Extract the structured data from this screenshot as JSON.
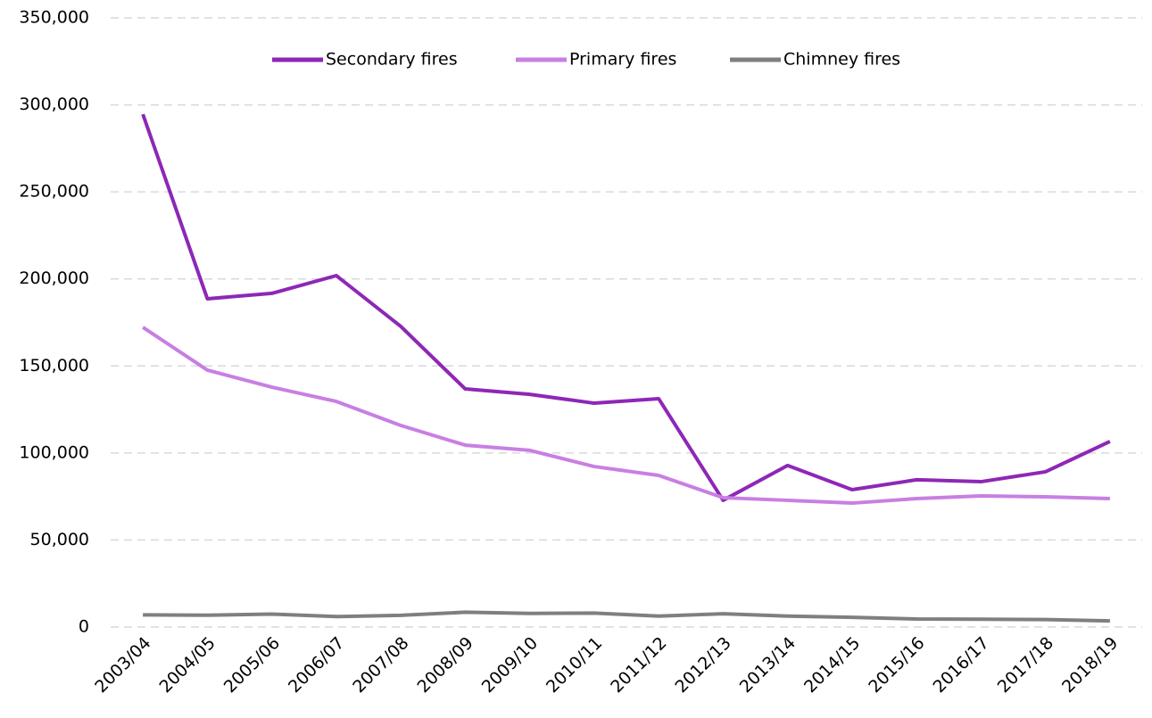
{
  "chart_data": {
    "type": "line",
    "categories": [
      "2003/04",
      "2004/05",
      "2005/06",
      "2006/07",
      "2007/08",
      "2008/09",
      "2009/10",
      "2010/11",
      "2011/12",
      "2012/13",
      "2013/14",
      "2014/15",
      "2015/16",
      "2016/17",
      "2017/18",
      "2018/19"
    ],
    "series": [
      {
        "name": "Secondary fires",
        "color": "#8e27b6",
        "values": [
          294600,
          188600,
          191700,
          201900,
          172700,
          136800,
          133700,
          128600,
          131200,
          72800,
          92800,
          78900,
          84600,
          83500,
          89200,
          106600
        ]
      },
      {
        "name": "Primary fires",
        "color": "#c87fe2",
        "values": [
          172200,
          147600,
          137800,
          129600,
          115800,
          104500,
          101500,
          92200,
          87100,
          74300,
          72800,
          71200,
          73800,
          75300,
          74800,
          73800
        ]
      },
      {
        "name": "Chimney fires",
        "color": "#7f7f7f",
        "values": [
          7000,
          6800,
          7400,
          6000,
          6700,
          8500,
          7800,
          8000,
          6300,
          7600,
          6300,
          5600,
          4600,
          4500,
          4300,
          3500
        ]
      }
    ],
    "ylim": [
      0,
      350000
    ],
    "yticks": [
      0,
      {
        "value": 50000,
        "label": "50,000"
      },
      {
        "value": 100000,
        "label": "100,000"
      },
      {
        "value": 150000,
        "label": "150,000"
      },
      {
        "value": 200000,
        "label": "200,000"
      },
      {
        "value": 250000,
        "label": "250,000"
      },
      {
        "value": 300000,
        "label": "300,000"
      },
      {
        "value": 350000,
        "label": "350,000"
      }
    ],
    "grid": true,
    "legend": "top"
  }
}
